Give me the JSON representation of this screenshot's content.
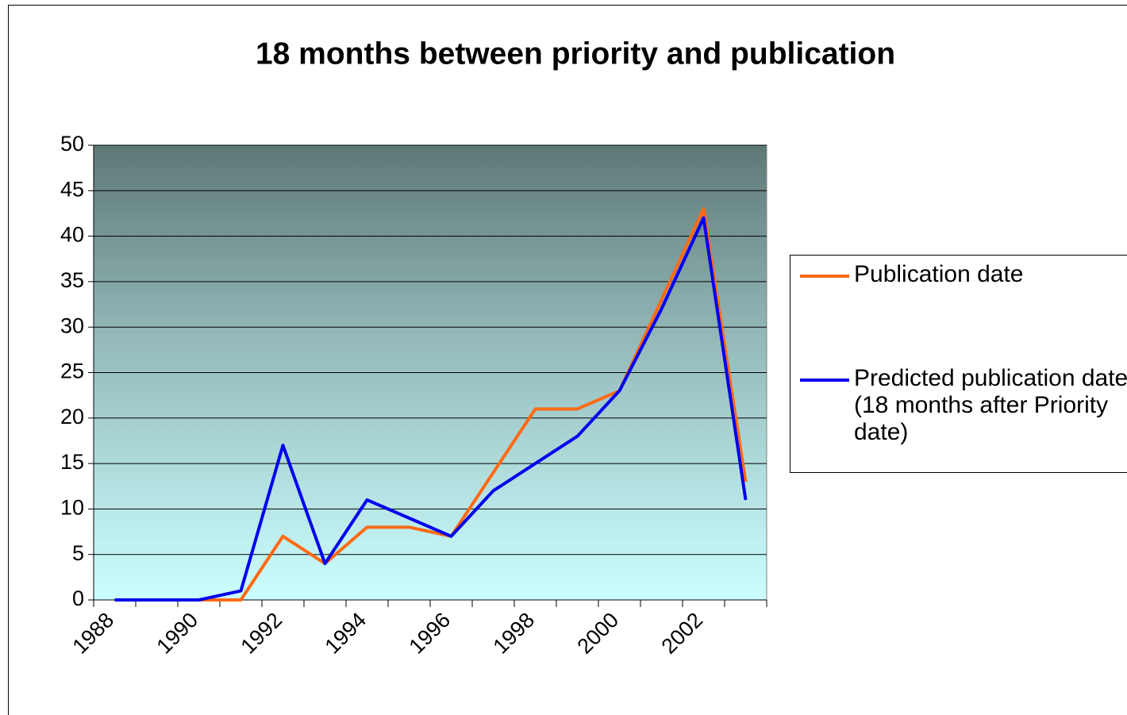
{
  "chart_data": {
    "type": "line",
    "title": "18 months between priority and publication",
    "categories": [
      "1988",
      null,
      "1990",
      null,
      "1992",
      null,
      "1994",
      null,
      "1996",
      null,
      "1998",
      null,
      "2000",
      null,
      "2002",
      null
    ],
    "series": [
      {
        "name": "Publication date",
        "color": "#ff6a13",
        "values": [
          0,
          0,
          0,
          0,
          7,
          4,
          8,
          8,
          7,
          14,
          21,
          21,
          23,
          33,
          43,
          13
        ]
      },
      {
        "name": "Predicted publication date (18 months after Priority date)",
        "color": "#0000ee",
        "values": [
          0,
          0,
          0,
          1,
          17,
          4,
          11,
          9,
          7,
          12,
          15,
          18,
          23,
          32,
          42,
          11
        ]
      }
    ],
    "ylim": [
      0,
      50
    ],
    "yticks": [
      0,
      5,
      10,
      15,
      20,
      25,
      30,
      35,
      40,
      45,
      50
    ],
    "grid": true,
    "legend": "right"
  }
}
